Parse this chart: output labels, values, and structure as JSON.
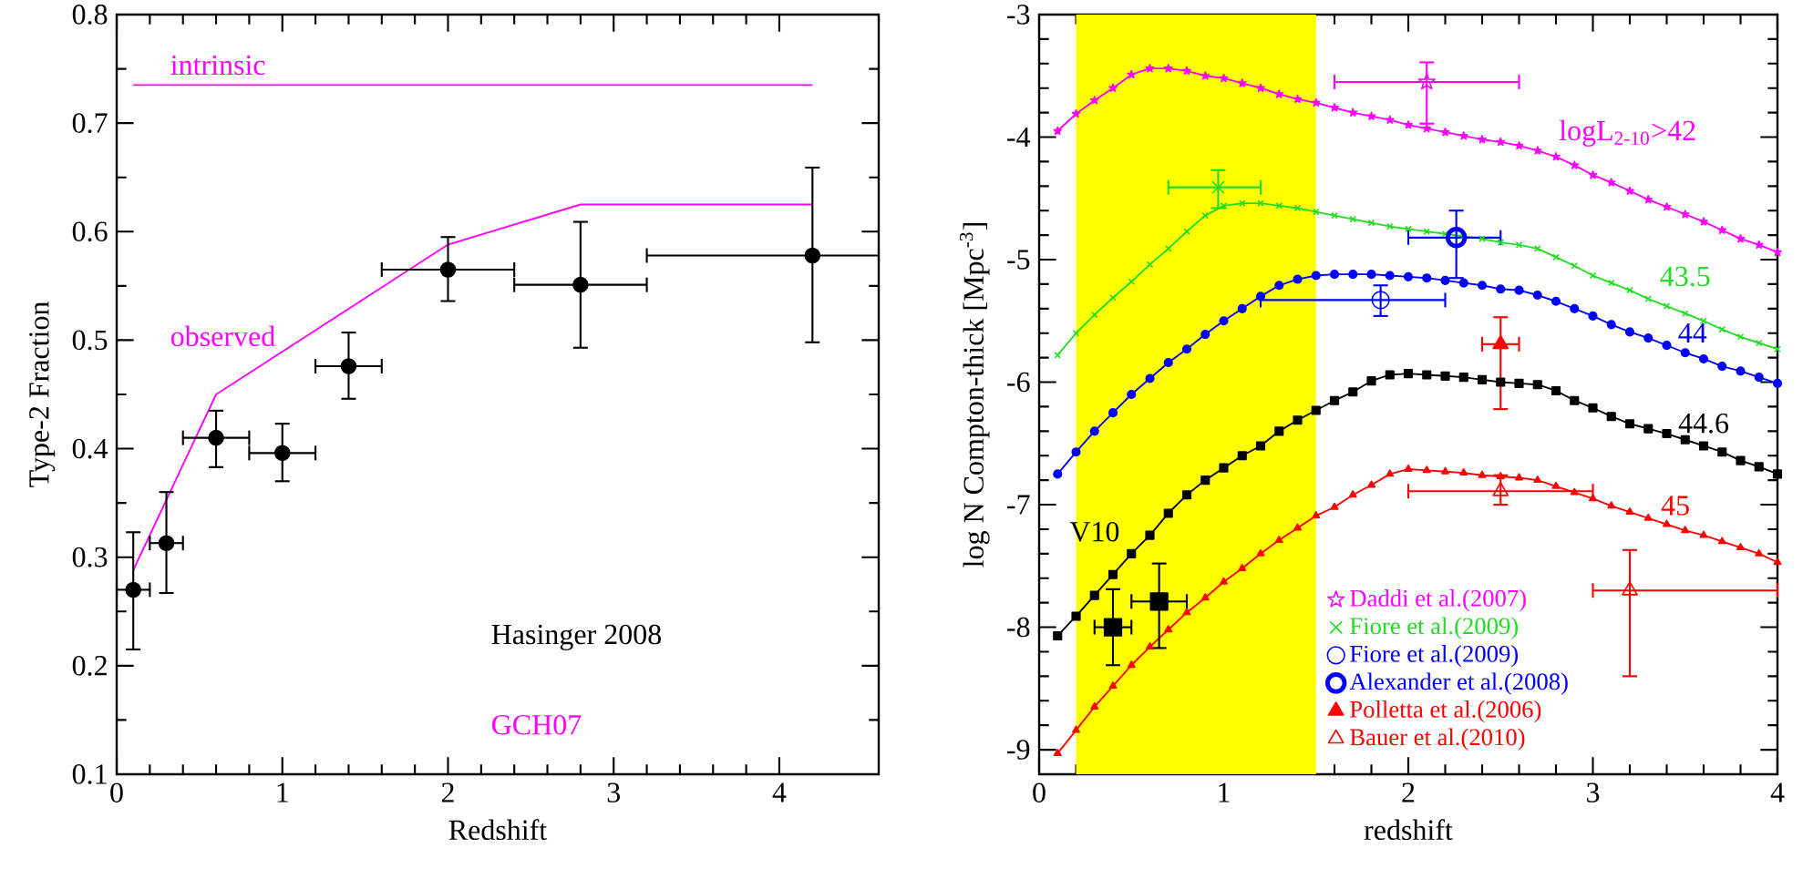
{
  "chart_data": [
    {
      "type": "scatter",
      "xlabel": "Redshift",
      "ylabel": "Type-2 Fraction",
      "xlim": [
        0,
        4.6
      ],
      "ylim": [
        0.1,
        0.8
      ],
      "xticks": [
        0,
        1,
        2,
        3,
        4
      ],
      "yticks": [
        0.1,
        0.2,
        0.3,
        0.4,
        0.5,
        0.6,
        0.7,
        0.8
      ],
      "annotations": [
        "Hasinger 2008",
        "GCH07"
      ],
      "series": [
        {
          "type": "line",
          "name": "intrinsic",
          "color": "#ff00ff",
          "marker": "none",
          "x": [
            0.1,
            4.2
          ],
          "values": [
            0.735,
            0.735
          ]
        },
        {
          "type": "line",
          "name": "observed",
          "color": "#ff00ff",
          "marker": "none",
          "x": [
            0.1,
            0.6,
            2.0,
            2.8,
            4.2
          ],
          "values": [
            0.288,
            0.45,
            0.588,
            0.625,
            0.625
          ]
        },
        {
          "color": "#000000",
          "marker": "circle",
          "x": [
            0.1,
            0.3,
            0.6,
            1.0,
            1.4,
            2.0,
            2.8,
            4.2
          ],
          "values": [
            0.27,
            0.313,
            0.41,
            0.396,
            0.476,
            0.565,
            0.551,
            0.578
          ],
          "errors": [
            [
              0.215,
              0.323
            ],
            [
              0.267,
              0.36
            ],
            [
              0.383,
              0.435
            ],
            [
              0.37,
              0.423
            ],
            [
              0.446,
              0.507
            ],
            [
              0.536,
              0.595
            ],
            [
              0.493,
              0.609
            ],
            [
              0.498,
              0.659
            ]
          ],
          "xerrors": [
            [
              0,
              0.2
            ],
            [
              0.2,
              0.4
            ],
            [
              0.4,
              0.8
            ],
            [
              0.8,
              1.2
            ],
            [
              1.2,
              1.6
            ],
            [
              1.6,
              2.4
            ],
            [
              2.4,
              3.2
            ],
            [
              3.2,
              4.6
            ]
          ]
        }
      ]
    },
    {
      "type": "line",
      "xlabel": "redshift",
      "ylabel": "log N Compton-thick [Mpc$^{-3}$]",
      "xlim": [
        0,
        4
      ],
      "ylim": [
        -9.2,
        -3
      ],
      "xticks": [
        0,
        1,
        2,
        3,
        4
      ],
      "yticks": [
        -9,
        -8,
        -7,
        -6,
        -5,
        -4,
        -3
      ],
      "legend": "bottom",
      "bands": [
        {
          "axis": "x",
          "from": 0.2,
          "to": 1.5,
          "color": "#ffff00"
        }
      ],
      "x": [
        0.1,
        0.2,
        0.3,
        0.4,
        0.5,
        0.6,
        0.7,
        0.8,
        0.9,
        1.0,
        1.1,
        1.2,
        1.3,
        1.4,
        1.5,
        1.6,
        1.7,
        1.8,
        1.9,
        2.0,
        2.1,
        2.2,
        2.3,
        2.4,
        2.5,
        2.6,
        2.7,
        2.8,
        2.9,
        3.0,
        3.1,
        3.2,
        3.3,
        3.4,
        3.5,
        3.6,
        3.7,
        3.8,
        3.9,
        4.0
      ],
      "series": [
        {
          "name": "logL$_{2-10}$>42",
          "color": "#ff00ff",
          "marker": "star",
          "values": [
            -3.95,
            -3.81,
            -3.7,
            -3.6,
            -3.49,
            -3.44,
            -3.44,
            -3.46,
            -3.5,
            -3.52,
            -3.56,
            -3.6,
            -3.65,
            -3.69,
            -3.72,
            -3.76,
            -3.8,
            -3.83,
            -3.86,
            -3.9,
            -3.93,
            -3.96,
            -3.99,
            -4.02,
            -4.04,
            -4.07,
            -4.11,
            -4.16,
            -4.23,
            -4.31,
            -4.37,
            -4.44,
            -4.51,
            -4.57,
            -4.63,
            -4.69,
            -4.76,
            -4.83,
            -4.88,
            -4.94
          ]
        },
        {
          "name": "43.5",
          "color": "#22dd22",
          "marker": "cross",
          "values": [
            -5.78,
            -5.6,
            -5.45,
            -5.31,
            -5.18,
            -5.04,
            -4.91,
            -4.77,
            -4.64,
            -4.56,
            -4.54,
            -4.54,
            -4.56,
            -4.58,
            -4.61,
            -4.64,
            -4.67,
            -4.7,
            -4.73,
            -4.75,
            -4.77,
            -4.79,
            -4.81,
            -4.83,
            -4.86,
            -4.88,
            -4.91,
            -4.98,
            -5.05,
            -5.13,
            -5.19,
            -5.25,
            -5.32,
            -5.38,
            -5.44,
            -5.5,
            -5.57,
            -5.63,
            -5.68,
            -5.73
          ]
        },
        {
          "name": "44",
          "color": "#0000ff",
          "marker": "circle",
          "values": [
            -6.75,
            -6.57,
            -6.4,
            -6.25,
            -6.1,
            -5.97,
            -5.84,
            -5.73,
            -5.61,
            -5.5,
            -5.4,
            -5.3,
            -5.21,
            -5.16,
            -5.13,
            -5.12,
            -5.12,
            -5.12,
            -5.13,
            -5.14,
            -5.15,
            -5.17,
            -5.19,
            -5.21,
            -5.24,
            -5.25,
            -5.29,
            -5.34,
            -5.4,
            -5.46,
            -5.53,
            -5.59,
            -5.64,
            -5.7,
            -5.76,
            -5.81,
            -5.87,
            -5.91,
            -5.96,
            -6.01
          ]
        },
        {
          "name": "44.6",
          "color": "#000000",
          "marker": "square",
          "values": [
            -8.07,
            -7.91,
            -7.74,
            -7.57,
            -7.4,
            -7.25,
            -7.07,
            -6.92,
            -6.8,
            -6.7,
            -6.6,
            -6.52,
            -6.4,
            -6.31,
            -6.23,
            -6.15,
            -6.08,
            -5.99,
            -5.94,
            -5.93,
            -5.94,
            -5.95,
            -5.96,
            -5.98,
            -6.0,
            -6.01,
            -6.02,
            -6.07,
            -6.15,
            -6.21,
            -6.28,
            -6.34,
            -6.38,
            -6.42,
            -6.47,
            -6.52,
            -6.57,
            -6.64,
            -6.69,
            -6.75
          ]
        },
        {
          "name": "45",
          "color": "#ff0000",
          "marker": "triangle",
          "values": [
            -9.03,
            -8.84,
            -8.65,
            -8.48,
            -8.31,
            -8.16,
            -8.02,
            -7.88,
            -7.76,
            -7.63,
            -7.52,
            -7.4,
            -7.29,
            -7.19,
            -7.09,
            -7.02,
            -6.92,
            -6.84,
            -6.75,
            -6.71,
            -6.72,
            -6.73,
            -6.74,
            -6.76,
            -6.77,
            -6.78,
            -6.8,
            -6.85,
            -6.9,
            -6.95,
            -7.01,
            -7.06,
            -7.11,
            -7.16,
            -7.21,
            -7.25,
            -7.3,
            -7.35,
            -7.4,
            -7.47
          ]
        },
        {
          "type": "scatter",
          "name": "Daddi et al.(2007)",
          "color": "#ff00ff",
          "marker": "star",
          "x": [
            2.1
          ],
          "values": [
            -3.55
          ],
          "errors": [
            [
              -3.89,
              -3.39
            ]
          ],
          "xerrors": [
            [
              1.6,
              2.6
            ]
          ]
        },
        {
          "type": "scatter",
          "name": "Fiore et al.(2009)",
          "color": "#22dd22",
          "marker": "cross",
          "x": [
            0.97
          ],
          "values": [
            -4.41
          ],
          "errors": [
            [
              -4.58,
              -4.27
            ]
          ],
          "xerrors": [
            [
              0.7,
              1.2
            ]
          ]
        },
        {
          "type": "scatter",
          "name": "Fiore et al.(2009)",
          "color": "#0000ff",
          "marker": "circle",
          "x": [
            1.85
          ],
          "values": [
            -5.33
          ],
          "errors": [
            [
              -5.46,
              -5.21
            ]
          ],
          "xerrors": [
            [
              1.2,
              2.2
            ]
          ]
        },
        {
          "type": "scatter",
          "name": "Alexander et al.(2008)",
          "color": "#0000ff",
          "marker": "circle",
          "x": [
            2.26
          ],
          "values": [
            -4.82
          ],
          "errors": [
            [
              -5.15,
              -4.6
            ]
          ],
          "xerrors": [
            [
              2.0,
              2.5
            ]
          ]
        },
        {
          "type": "scatter",
          "name": "Polletta et al.(2006)",
          "color": "#ff0000",
          "marker": "triangle",
          "x": [
            2.5
          ],
          "values": [
            -5.69
          ],
          "errors": [
            [
              -6.22,
              -5.47
            ]
          ],
          "xerrors": [
            [
              2.4,
              2.6
            ]
          ]
        },
        {
          "type": "scatter",
          "name": "Bauer et al.(2010)",
          "color": "#ff0000",
          "marker": "triangle",
          "x": [
            2.5,
            3.2
          ],
          "values": [
            -6.89,
            -7.7
          ],
          "errors": [
            [
              -7.0,
              -6.76
            ],
            [
              -8.4,
              -7.37
            ]
          ],
          "xerrors": [
            [
              2.0,
              3.0
            ],
            [
              3.0,
              4.0
            ]
          ]
        },
        {
          "type": "scatter",
          "name": "V10",
          "color": "#000000",
          "marker": "square",
          "x": [
            0.4,
            0.65
          ],
          "values": [
            -8.0,
            -7.79
          ],
          "errors": [
            [
              -8.31,
              -7.69
            ],
            [
              -8.17,
              -7.48
            ]
          ],
          "xerrors": [
            [
              0.3,
              0.5
            ],
            [
              0.5,
              0.8
            ]
          ]
        }
      ]
    }
  ]
}
